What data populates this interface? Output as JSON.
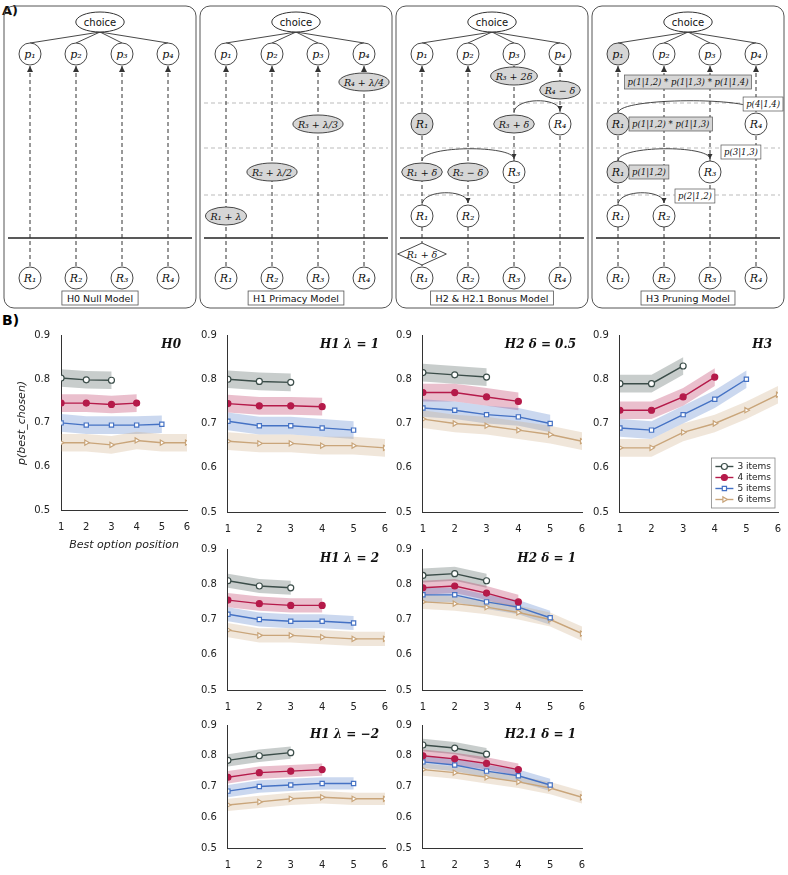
{
  "panel_labels": [
    "A)",
    "B)"
  ],
  "diagram": {
    "models": [
      {
        "label": "H0 Null Model",
        "root": "choice",
        "outputs": [
          "p₁",
          "p₂",
          "p₃",
          "p₄"
        ],
        "inputs": [
          "R₁",
          "R₂",
          "R₃",
          "R₄"
        ],
        "nodes": []
      },
      {
        "label": "H1 Primacy Model",
        "root": "choice",
        "outputs": [
          "p₁",
          "p₂",
          "p₃",
          "p₄"
        ],
        "inputs": [
          "R₁",
          "R₂",
          "R₃",
          "R₄"
        ],
        "nodes": [
          "R₁ + λ",
          "R₂ + λ/2",
          "R₃ + λ/3",
          "R₄ + λ/4"
        ]
      },
      {
        "label": "H2 & H2.1 Bonus Model",
        "root": "choice",
        "outputs": [
          "p₁",
          "p₂",
          "p₃",
          "p₄"
        ],
        "inputs": [
          "R₁",
          "R₂",
          "R₃",
          "R₄"
        ],
        "nodes": [
          "R₁ + δ",
          "R₁",
          "R₂",
          "R₁ + δ",
          "R₂ − δ",
          "R₃",
          "R₁",
          "R₃ + δ",
          "R₄",
          "R₃ + 2δ",
          "R₄ − δ"
        ]
      },
      {
        "label": "H3 Pruning Model",
        "root": "choice",
        "outputs": [
          "p₁",
          "p₂",
          "p₃",
          "p₄"
        ],
        "inputs": [
          "R₁",
          "R₂",
          "R₃",
          "R₄"
        ],
        "nodes": [
          "R₁",
          "R₂",
          "R₁",
          "R₃",
          "R₁",
          "R₄"
        ],
        "probabilities": [
          "p(2|1,2)",
          "p(1|1,2)",
          "p(3|1,3)",
          "p(1|1,2) * p(1|1,3)",
          "p(4|1,4)",
          "p(1|1,2) * p(1|1,3) * p(1|1,4)"
        ]
      }
    ]
  },
  "chart_data": [
    {
      "type": "line",
      "title": "H0",
      "xlabel": "Best option position",
      "ylabel": "p(best_chosen)",
      "xlim": [
        1,
        6
      ],
      "xticks": [
        1,
        2,
        3,
        4,
        5,
        6
      ],
      "ylim": [
        0.5,
        0.9
      ],
      "yticks": [
        0.5,
        0.6,
        0.7,
        0.8,
        0.9
      ],
      "series": [
        {
          "name": "3 items",
          "color": "#3b4d49",
          "marker": "circle",
          "x": [
            1,
            2,
            3
          ],
          "values": [
            0.802,
            0.798,
            0.797
          ],
          "error": [
            0.02,
            0.02,
            0.02
          ]
        },
        {
          "name": "4 items",
          "color": "#b51a4a",
          "marker": "dot",
          "x": [
            1,
            2,
            3,
            4
          ],
          "values": [
            0.745,
            0.745,
            0.742,
            0.745
          ],
          "error": [
            0.02,
            0.02,
            0.02,
            0.02
          ]
        },
        {
          "name": "5 items",
          "color": "#4572c4",
          "marker": "square",
          "x": [
            1,
            2,
            3,
            4,
            5
          ],
          "values": [
            0.7,
            0.695,
            0.695,
            0.695,
            0.697
          ],
          "error": [
            0.02,
            0.02,
            0.02,
            0.02,
            0.02
          ]
        },
        {
          "name": "6 items",
          "color": "#c9a57a",
          "marker": "triangle",
          "x": [
            1,
            2,
            3,
            4,
            5,
            6
          ],
          "values": [
            0.655,
            0.655,
            0.65,
            0.66,
            0.655,
            0.655
          ],
          "error": [
            0.02,
            0.02,
            0.02,
            0.02,
            0.02,
            0.02
          ]
        }
      ]
    },
    {
      "type": "line",
      "title": "H1 λ = 1",
      "xlim": [
        1,
        6
      ],
      "xticks": [
        1,
        2,
        3,
        4,
        5,
        6
      ],
      "ylim": [
        0.5,
        0.9
      ],
      "yticks": [
        0.5,
        0.6,
        0.7,
        0.8,
        0.9
      ],
      "series": [
        {
          "name": "3 items",
          "color": "#3b4d49",
          "marker": "circle",
          "x": [
            1,
            2,
            3
          ],
          "values": [
            0.8,
            0.795,
            0.793
          ],
          "error": [
            0.02,
            0.02,
            0.02
          ]
        },
        {
          "name": "4 items",
          "color": "#b51a4a",
          "marker": "dot",
          "x": [
            1,
            2,
            3,
            4
          ],
          "values": [
            0.745,
            0.74,
            0.74,
            0.738
          ],
          "error": [
            0.02,
            0.02,
            0.02,
            0.02
          ]
        },
        {
          "name": "5 items",
          "color": "#4572c4",
          "marker": "square",
          "x": [
            1,
            2,
            3,
            4,
            5
          ],
          "values": [
            0.705,
            0.695,
            0.695,
            0.69,
            0.685
          ],
          "error": [
            0.02,
            0.02,
            0.02,
            0.02,
            0.02
          ]
        },
        {
          "name": "6 items",
          "color": "#c9a57a",
          "marker": "triangle",
          "x": [
            1,
            2,
            3,
            4,
            5,
            6
          ],
          "values": [
            0.66,
            0.655,
            0.655,
            0.65,
            0.65,
            0.645
          ],
          "error": [
            0.02,
            0.02,
            0.02,
            0.02,
            0.02,
            0.02
          ]
        }
      ]
    },
    {
      "type": "line",
      "title": "H2 δ = 0.5",
      "xlim": [
        1,
        6
      ],
      "xticks": [
        1,
        2,
        3,
        4,
        5,
        6
      ],
      "ylim": [
        0.5,
        0.9
      ],
      "yticks": [
        0.5,
        0.6,
        0.7,
        0.8,
        0.9
      ],
      "series": [
        {
          "name": "3 items",
          "color": "#3b4d49",
          "marker": "circle",
          "x": [
            1,
            2,
            3
          ],
          "values": [
            0.815,
            0.81,
            0.805
          ],
          "error": [
            0.02,
            0.02,
            0.02
          ]
        },
        {
          "name": "4 items",
          "color": "#b51a4a",
          "marker": "dot",
          "x": [
            1,
            2,
            3,
            4
          ],
          "values": [
            0.77,
            0.77,
            0.76,
            0.75
          ],
          "error": [
            0.02,
            0.02,
            0.02,
            0.02
          ]
        },
        {
          "name": "5 items",
          "color": "#4572c4",
          "marker": "square",
          "x": [
            1,
            2,
            3,
            4,
            5
          ],
          "values": [
            0.735,
            0.73,
            0.72,
            0.715,
            0.7
          ],
          "error": [
            0.02,
            0.02,
            0.02,
            0.02,
            0.02
          ]
        },
        {
          "name": "6 items",
          "color": "#c9a57a",
          "marker": "triangle",
          "x": [
            1,
            2,
            3,
            4,
            5,
            6
          ],
          "values": [
            0.71,
            0.7,
            0.695,
            0.685,
            0.675,
            0.66
          ],
          "error": [
            0.02,
            0.02,
            0.02,
            0.02,
            0.02,
            0.02
          ]
        }
      ]
    },
    {
      "type": "line",
      "title": "H3",
      "legend": "lower right",
      "xlim": [
        1,
        6
      ],
      "xticks": [
        1,
        2,
        3,
        4,
        5,
        6
      ],
      "ylim": [
        0.5,
        0.9
      ],
      "yticks": [
        0.5,
        0.6,
        0.7,
        0.8,
        0.9
      ],
      "series": [
        {
          "name": "3 items",
          "color": "#3b4d49",
          "marker": "circle",
          "x": [
            1,
            2,
            3
          ],
          "values": [
            0.79,
            0.79,
            0.83
          ],
          "error": [
            0.02,
            0.02,
            0.02
          ]
        },
        {
          "name": "4 items",
          "color": "#b51a4a",
          "marker": "dot",
          "x": [
            1,
            2,
            3,
            4
          ],
          "values": [
            0.73,
            0.73,
            0.76,
            0.805
          ],
          "error": [
            0.02,
            0.02,
            0.02,
            0.02
          ]
        },
        {
          "name": "5 items",
          "color": "#4572c4",
          "marker": "square",
          "x": [
            1,
            2,
            3,
            4,
            5
          ],
          "values": [
            0.69,
            0.685,
            0.72,
            0.755,
            0.8
          ],
          "error": [
            0.02,
            0.02,
            0.02,
            0.02,
            0.02
          ]
        },
        {
          "name": "6 items",
          "color": "#c9a57a",
          "marker": "triangle",
          "x": [
            1,
            2,
            3,
            4,
            5,
            6
          ],
          "values": [
            0.645,
            0.645,
            0.68,
            0.7,
            0.73,
            0.765
          ],
          "error": [
            0.02,
            0.02,
            0.02,
            0.02,
            0.02,
            0.02
          ]
        }
      ]
    },
    {
      "type": "line",
      "title": "H1 λ = 2",
      "xlim": [
        1,
        6
      ],
      "xticks": [
        1,
        2,
        3,
        4,
        5,
        6
      ],
      "ylim": [
        0.5,
        0.9
      ],
      "yticks": [
        0.5,
        0.6,
        0.7,
        0.8,
        0.9
      ],
      "series": [
        {
          "name": "3 items",
          "color": "#3b4d49",
          "marker": "circle",
          "x": [
            1,
            2,
            3
          ],
          "values": [
            0.81,
            0.795,
            0.79
          ],
          "error": [
            0.02,
            0.02,
            0.02
          ]
        },
        {
          "name": "4 items",
          "color": "#b51a4a",
          "marker": "dot",
          "x": [
            1,
            2,
            3,
            4
          ],
          "values": [
            0.755,
            0.745,
            0.74,
            0.74
          ],
          "error": [
            0.02,
            0.02,
            0.02,
            0.02
          ]
        },
        {
          "name": "5 items",
          "color": "#4572c4",
          "marker": "square",
          "x": [
            1,
            2,
            3,
            4,
            5
          ],
          "values": [
            0.715,
            0.7,
            0.695,
            0.695,
            0.69
          ],
          "error": [
            0.02,
            0.02,
            0.02,
            0.02,
            0.02
          ]
        },
        {
          "name": "6 items",
          "color": "#c9a57a",
          "marker": "triangle",
          "x": [
            1,
            2,
            3,
            4,
            5,
            6
          ],
          "values": [
            0.67,
            0.655,
            0.655,
            0.65,
            0.645,
            0.645
          ],
          "error": [
            0.02,
            0.02,
            0.02,
            0.02,
            0.02,
            0.02
          ]
        }
      ]
    },
    {
      "type": "line",
      "title": "H2 δ = 1",
      "xlim": [
        1,
        6
      ],
      "xticks": [
        1,
        2,
        3,
        4,
        5,
        6
      ],
      "ylim": [
        0.5,
        0.9
      ],
      "yticks": [
        0.5,
        0.6,
        0.7,
        0.8,
        0.9
      ],
      "series": [
        {
          "name": "3 items",
          "color": "#3b4d49",
          "marker": "circle",
          "x": [
            1,
            2,
            3
          ],
          "values": [
            0.825,
            0.83,
            0.81
          ],
          "error": [
            0.02,
            0.02,
            0.02
          ]
        },
        {
          "name": "4 items",
          "color": "#b51a4a",
          "marker": "dot",
          "x": [
            1,
            2,
            3,
            4
          ],
          "values": [
            0.79,
            0.795,
            0.775,
            0.75
          ],
          "error": [
            0.02,
            0.02,
            0.02,
            0.02
          ]
        },
        {
          "name": "5 items",
          "color": "#4572c4",
          "marker": "square",
          "x": [
            1,
            2,
            3,
            4,
            5
          ],
          "values": [
            0.77,
            0.77,
            0.75,
            0.735,
            0.705
          ],
          "error": [
            0.02,
            0.02,
            0.02,
            0.02,
            0.02
          ]
        },
        {
          "name": "6 items",
          "color": "#c9a57a",
          "marker": "triangle",
          "x": [
            1,
            2,
            3,
            4,
            5,
            6
          ],
          "values": [
            0.75,
            0.745,
            0.735,
            0.72,
            0.7,
            0.66
          ],
          "error": [
            0.02,
            0.02,
            0.02,
            0.02,
            0.02,
            0.02
          ]
        }
      ]
    },
    {
      "type": "line",
      "title": "H1 λ = −2",
      "xlim": [
        1,
        6
      ],
      "xticks": [
        1,
        2,
        3,
        4,
        5,
        6
      ],
      "ylim": [
        0.5,
        0.9
      ],
      "yticks": [
        0.5,
        0.6,
        0.7,
        0.8,
        0.9
      ],
      "series": [
        {
          "name": "3 items",
          "color": "#3b4d49",
          "marker": "circle",
          "x": [
            1,
            2,
            3
          ],
          "values": [
            0.785,
            0.8,
            0.81
          ],
          "error": [
            0.02,
            0.02,
            0.02
          ]
        },
        {
          "name": "4 items",
          "color": "#b51a4a",
          "marker": "dot",
          "x": [
            1,
            2,
            3,
            4
          ],
          "values": [
            0.73,
            0.745,
            0.75,
            0.755
          ],
          "error": [
            0.02,
            0.02,
            0.02,
            0.02
          ]
        },
        {
          "name": "5 items",
          "color": "#4572c4",
          "marker": "square",
          "x": [
            1,
            2,
            3,
            4,
            5
          ],
          "values": [
            0.685,
            0.7,
            0.705,
            0.71,
            0.71
          ],
          "error": [
            0.02,
            0.02,
            0.02,
            0.02,
            0.02
          ]
        },
        {
          "name": "6 items",
          "color": "#c9a57a",
          "marker": "triangle",
          "x": [
            1,
            2,
            3,
            4,
            5,
            6
          ],
          "values": [
            0.64,
            0.65,
            0.66,
            0.665,
            0.66,
            0.66
          ],
          "error": [
            0.02,
            0.02,
            0.02,
            0.02,
            0.02,
            0.02
          ]
        }
      ]
    },
    {
      "type": "line",
      "title": "H2.1 δ = 1",
      "xlim": [
        1,
        6
      ],
      "xticks": [
        1,
        2,
        3,
        4,
        5,
        6
      ],
      "ylim": [
        0.5,
        0.9
      ],
      "yticks": [
        0.5,
        0.6,
        0.7,
        0.8,
        0.9
      ],
      "series": [
        {
          "name": "3 items",
          "color": "#3b4d49",
          "marker": "circle",
          "x": [
            1,
            2,
            3
          ],
          "values": [
            0.835,
            0.825,
            0.805
          ],
          "error": [
            0.02,
            0.02,
            0.02
          ]
        },
        {
          "name": "4 items",
          "color": "#b51a4a",
          "marker": "dot",
          "x": [
            1,
            2,
            3,
            4
          ],
          "values": [
            0.8,
            0.79,
            0.775,
            0.755
          ],
          "error": [
            0.02,
            0.02,
            0.02,
            0.02
          ]
        },
        {
          "name": "5 items",
          "color": "#4572c4",
          "marker": "square",
          "x": [
            1,
            2,
            3,
            4,
            5
          ],
          "values": [
            0.78,
            0.77,
            0.75,
            0.735,
            0.705
          ],
          "error": [
            0.02,
            0.02,
            0.02,
            0.02,
            0.02
          ]
        },
        {
          "name": "6 items",
          "color": "#c9a57a",
          "marker": "triangle",
          "x": [
            1,
            2,
            3,
            4,
            5,
            6
          ],
          "values": [
            0.755,
            0.745,
            0.73,
            0.715,
            0.695,
            0.665
          ],
          "error": [
            0.02,
            0.02,
            0.02,
            0.02,
            0.02,
            0.02
          ]
        }
      ]
    }
  ]
}
